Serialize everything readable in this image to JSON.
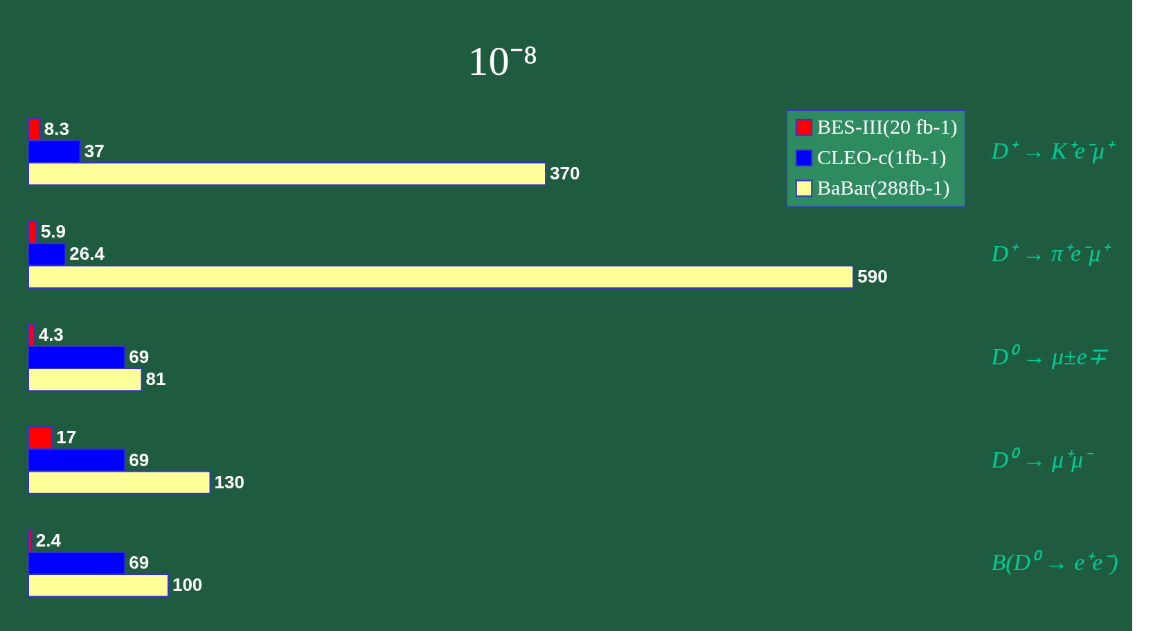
{
  "chart_data": {
    "type": "bar",
    "orientation": "horizontal",
    "title": "10⁻⁸",
    "categories": [
      "D⁺ → K⁺e⁻μ⁺",
      "D⁺ → π⁺e⁻μ⁺",
      "D⁰ → μ±e∓",
      "D⁰ → μ⁺μ⁻",
      "B(D⁰ → e⁺e⁻)"
    ],
    "series": [
      {
        "name": "BES-III(20 fb-1)",
        "color": "#ff0000",
        "values": [
          8.3,
          5.9,
          4.3,
          17,
          2.4
        ]
      },
      {
        "name": "CLEO-c(1fb-1)",
        "color": "#0000ff",
        "values": [
          37,
          26.4,
          69,
          69,
          69
        ]
      },
      {
        "name": "BaBar(288fb-1)",
        "color": "#ffff99",
        "values": [
          370,
          590,
          81,
          130,
          100
        ]
      }
    ],
    "data_labels": true,
    "legend": "top right"
  }
}
